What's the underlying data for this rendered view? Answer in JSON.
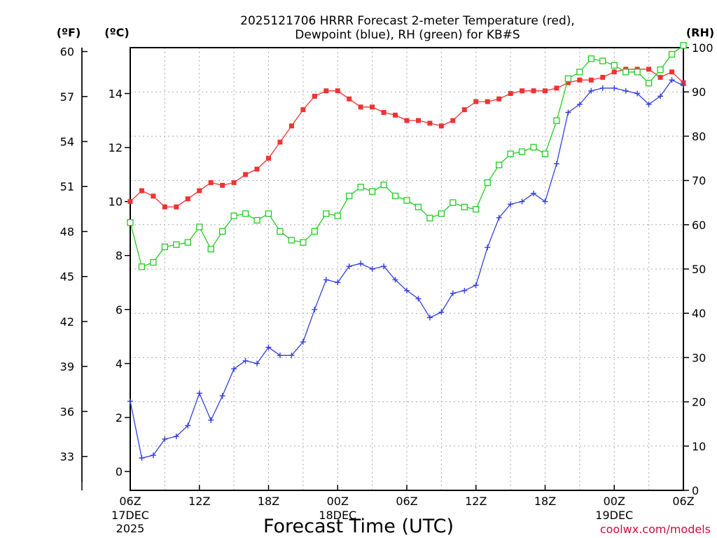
{
  "chart_data": {
    "type": "line",
    "title": [
      "2025121706 HRRR Forecast 2-meter Temperature (red),",
      "Dewpoint (blue), RH (green) for KB#S"
    ],
    "xlabel": "Forecast Time (UTC)",
    "credit": "coolwx.com/models",
    "units": {
      "fahrenheit": "(ºF)",
      "celsius": "(ºC)",
      "rh": "(RH)"
    },
    "x_range_hours": [
      0,
      48
    ],
    "x_ticks": [
      {
        "h": 0,
        "label": "06Z",
        "sub1": "17DEC",
        "sub2": "2025"
      },
      {
        "h": 6,
        "label": "12Z"
      },
      {
        "h": 12,
        "label": "18Z"
      },
      {
        "h": 18,
        "label": "00Z",
        "sub1": "18DEC"
      },
      {
        "h": 24,
        "label": "06Z"
      },
      {
        "h": 30,
        "label": "12Z"
      },
      {
        "h": 36,
        "label": "18Z"
      },
      {
        "h": 42,
        "label": "00Z",
        "sub1": "19DEC"
      },
      {
        "h": 48,
        "label": "06Z"
      }
    ],
    "celsius_axis": {
      "range": [
        -0.7,
        15.7
      ],
      "ticks": [
        "0",
        "2",
        "4",
        "6",
        "8",
        "10",
        "12",
        "14"
      ]
    },
    "fahrenheit_axis": {
      "ticks": [
        "33",
        "36",
        "39",
        "42",
        "45",
        "48",
        "51",
        "54",
        "57",
        "60"
      ]
    },
    "rh_axis": {
      "range": [
        0,
        100
      ],
      "ticks": [
        "0",
        "10",
        "20",
        "30",
        "40",
        "50",
        "60",
        "70",
        "80",
        "90",
        "100"
      ]
    },
    "series": [
      {
        "name": "Temperature",
        "axis": "celsius",
        "color": "#ee3333",
        "marker": "filled-square",
        "values": [
          10.0,
          10.4,
          10.2,
          9.8,
          9.8,
          10.1,
          10.4,
          10.7,
          10.6,
          10.7,
          11.0,
          11.2,
          11.6,
          12.2,
          12.8,
          13.4,
          13.9,
          14.1,
          14.1,
          13.8,
          13.5,
          13.5,
          13.3,
          13.2,
          13.0,
          13.0,
          12.9,
          12.8,
          13.0,
          13.4,
          13.7,
          13.7,
          13.8,
          14.0,
          14.1,
          14.1,
          14.1,
          14.2,
          14.4,
          14.5,
          14.5,
          14.6,
          14.8,
          14.9,
          14.9,
          14.9,
          14.6,
          14.8,
          14.4
        ]
      },
      {
        "name": "Dewpoint",
        "axis": "celsius",
        "color": "#3340dd",
        "marker": "plus",
        "values": [
          2.6,
          0.5,
          0.6,
          1.2,
          1.3,
          1.7,
          2.9,
          1.9,
          2.8,
          3.8,
          4.1,
          4.0,
          4.6,
          4.3,
          4.3,
          4.8,
          6.0,
          7.1,
          7.0,
          7.6,
          7.7,
          7.5,
          7.6,
          7.1,
          6.7,
          6.4,
          5.7,
          5.9,
          6.6,
          6.7,
          6.9,
          8.3,
          9.4,
          9.9,
          10.0,
          10.3,
          10.0,
          11.4,
          13.3,
          13.6,
          14.1,
          14.2,
          14.2,
          14.1,
          14.0,
          13.6,
          13.9,
          14.5,
          14.3
        ]
      },
      {
        "name": "RH",
        "axis": "rh",
        "color": "#22cc22",
        "marker": "open-square",
        "values": [
          60.5,
          50.5,
          51.5,
          55,
          55.5,
          56,
          59.5,
          54.5,
          58.5,
          62,
          62.5,
          61,
          62.5,
          58.5,
          56.5,
          56,
          58.5,
          62.5,
          62,
          66.5,
          68.5,
          67.5,
          69,
          66.5,
          65.5,
          64,
          61.5,
          62.5,
          65,
          64,
          63.5,
          69.5,
          73.5,
          76,
          76.5,
          77.5,
          76,
          83.5,
          93,
          94.5,
          97.5,
          97,
          96,
          94.5,
          94.5,
          92,
          95,
          98.5,
          100.5
        ]
      }
    ]
  }
}
